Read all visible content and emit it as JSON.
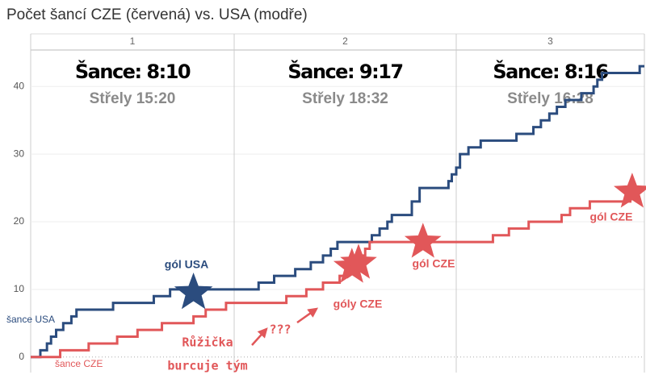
{
  "chart_data": {
    "type": "line",
    "title": "Počet šancí CZE (červená) vs. USA (modře)",
    "step": true,
    "grid": true,
    "ylim": [
      -2.3,
      45.4
    ],
    "yticks": [
      0,
      10,
      20,
      30,
      40
    ],
    "panels": [
      {
        "label": "1",
        "xlim": [
          0,
          20
        ],
        "header": "Šance: 8:10",
        "subheader": "Střely 15:20"
      },
      {
        "label": "2",
        "xlim": [
          20,
          40
        ],
        "header": "Šance: 9:17",
        "subheader": "Střely 18:32"
      },
      {
        "label": "3",
        "xlim": [
          40,
          60
        ],
        "header": "Šance: 8:16",
        "subheader": "Střely 16:28"
      }
    ],
    "series": [
      {
        "name": "šance USA",
        "color": "#2b4c7e",
        "x": [
          0,
          0.95,
          1.6,
          2.0,
          2.5,
          3.2,
          4.0,
          4.5,
          8.1,
          12.1,
          13.7,
          22.2,
          23.6,
          25.5,
          26.9,
          28.0,
          28.7,
          29.3,
          32.4,
          33.1,
          33.8,
          34.2,
          36.0,
          36.7,
          39.3,
          39.6,
          40.0,
          40.4,
          41.3,
          42.6,
          46.4,
          48.2,
          49.0,
          49.9,
          50.7,
          51.6,
          53.3,
          54.6,
          55.0,
          55.5,
          59.5,
          60
        ],
        "values": [
          0,
          1,
          2,
          3,
          4,
          5,
          6,
          7,
          8,
          9,
          10,
          11,
          12,
          13,
          14,
          15,
          16,
          17,
          18,
          19,
          20,
          21,
          23,
          25,
          26,
          27,
          28,
          30,
          31,
          32,
          33,
          34,
          35,
          36,
          37,
          38,
          39,
          40,
          41,
          42,
          43,
          43
        ]
      },
      {
        "name": "šance CZE",
        "color": "#e15759",
        "x": [
          0,
          2.9,
          5.7,
          8.5,
          10.5,
          12.9,
          16.0,
          17.2,
          19.2,
          24.7,
          26.5,
          28.0,
          29.5,
          30.2,
          30.9,
          31.3,
          31.8,
          32.2,
          43.9,
          45.6,
          47.7,
          51.2,
          52.1,
          54.2,
          58.5,
          59.3,
          60
        ],
        "values": [
          0,
          1,
          2,
          3,
          4,
          5,
          6,
          7,
          8,
          9,
          10,
          11,
          12,
          13,
          14,
          15,
          16,
          17,
          18,
          19,
          20,
          21,
          22,
          23,
          24,
          25,
          25
        ]
      }
    ],
    "goals": [
      {
        "series": 0,
        "x": 16.0,
        "y": 9.5
      },
      {
        "series": 1,
        "x": 30.6,
        "y": 13.3
      },
      {
        "series": 1,
        "x": 31.2,
        "y": 13.9
      },
      {
        "series": 1,
        "x": 37.0,
        "y": 17.0
      },
      {
        "series": 1,
        "x": 58.7,
        "y": 24.4
      }
    ],
    "annotations": [
      {
        "text": "gól USA",
        "series": 0
      },
      {
        "text": "gól CZE",
        "series": 1
      },
      {
        "text": "góly CZE",
        "series": 1
      },
      {
        "text": "gól CZE",
        "series": 1
      },
      {
        "text": "???",
        "series": 1
      },
      {
        "lines": [
          "Růžička",
          "burcuje tým"
        ],
        "series": 1
      }
    ]
  }
}
